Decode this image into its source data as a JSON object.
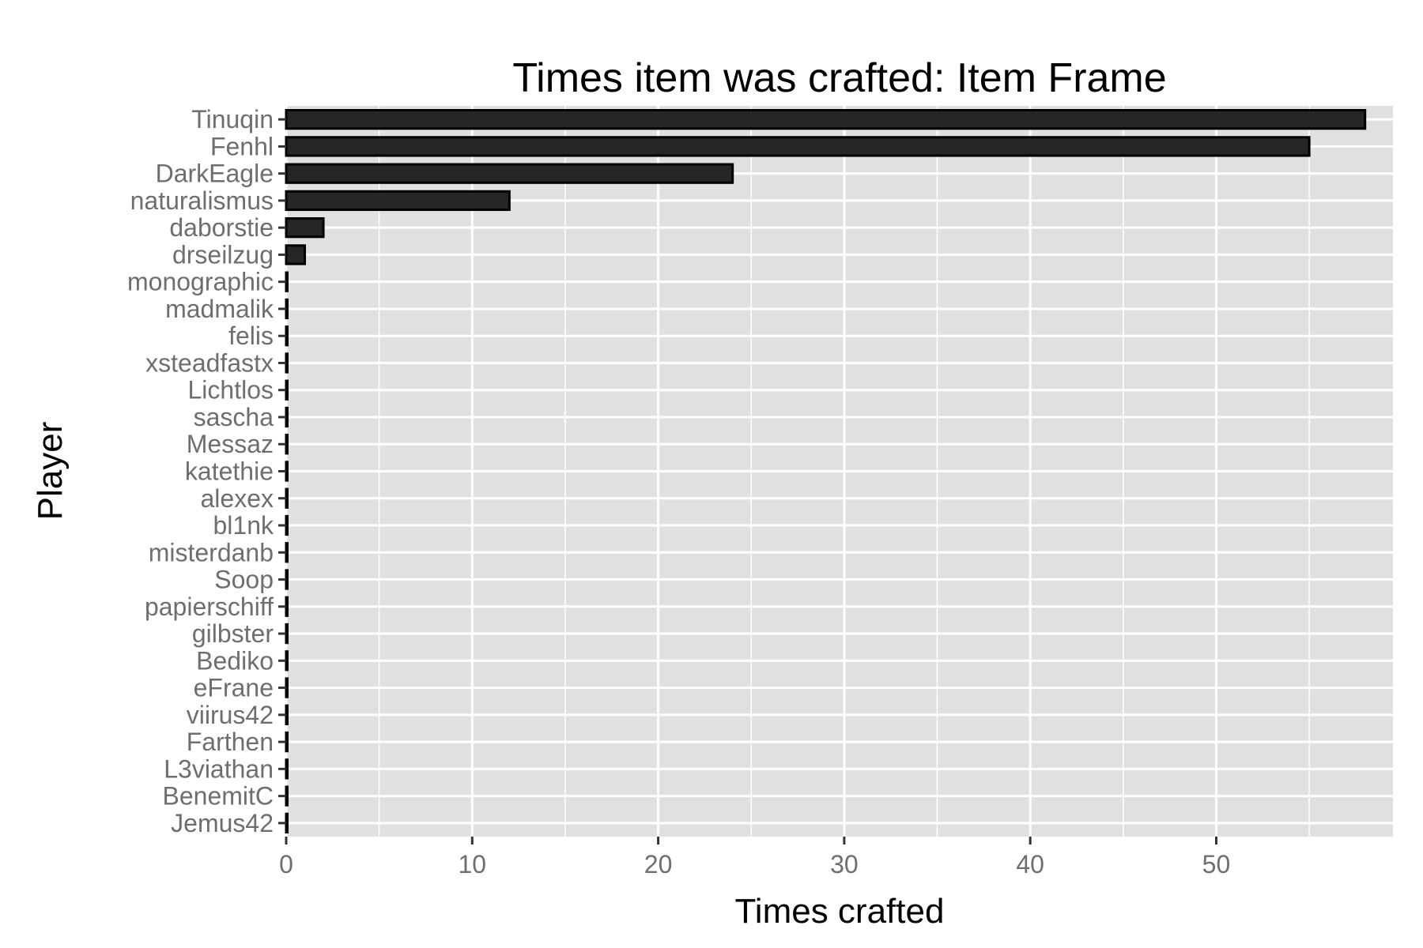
{
  "chart_data": {
    "type": "bar",
    "orientation": "horizontal",
    "title": "Times item was crafted: Item Frame",
    "xlabel": "Times crafted",
    "ylabel": "Player",
    "xlim": [
      0,
      59.5
    ],
    "x_ticks": [
      0,
      10,
      20,
      30,
      40,
      50
    ],
    "grid": true,
    "legend": "none",
    "colors": {
      "panel": "#e0e0e0",
      "bar_fill": "#262626",
      "bar_outline": "#000000",
      "grid": "#ffffff",
      "tick_text": "#6e6e6e"
    },
    "categories": [
      "Tinuqin",
      "Fenhl",
      "DarkEagle",
      "naturalismus",
      "daborstie",
      "drseilzug",
      "monographic",
      "madmalik",
      "felis",
      "xsteadfastx",
      "Lichtlos",
      "sascha",
      "Messaz",
      "katethie",
      "alexex",
      "bl1nk",
      "misterdanb",
      "Soop",
      "papierschiff",
      "gilbster",
      "Bediko",
      "eFrane",
      "viirus42",
      "Farthen",
      "L3viathan",
      "BenemitC",
      "Jemus42"
    ],
    "values": [
      58,
      55,
      24,
      12,
      2,
      1,
      0,
      0,
      0,
      0,
      0,
      0,
      0,
      0,
      0,
      0,
      0,
      0,
      0,
      0,
      0,
      0,
      0,
      0,
      0,
      0,
      0
    ]
  }
}
